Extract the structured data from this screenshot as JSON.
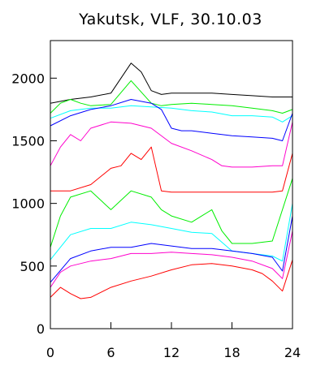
{
  "chart_data": {
    "type": "line",
    "title": "Yakutsk, VLF, 30.10.03",
    "xlabel": "",
    "ylabel": "",
    "xlim": [
      0,
      24
    ],
    "ylim": [
      0,
      2300
    ],
    "x_ticks": [
      0,
      6,
      12,
      18,
      24
    ],
    "y_ticks": [
      0,
      500,
      1000,
      1500,
      2000
    ],
    "grid": false,
    "series": [
      {
        "color": "#000000",
        "x": [
          0,
          2,
          4,
          6,
          7,
          8,
          9,
          10,
          11,
          12,
          14,
          16,
          18,
          20,
          22,
          24
        ],
        "y": [
          1800,
          1830,
          1850,
          1880,
          2000,
          2120,
          2050,
          1900,
          1870,
          1880,
          1880,
          1880,
          1870,
          1860,
          1850,
          1850
        ]
      },
      {
        "color": "#00ee00",
        "x": [
          0,
          1,
          2,
          3,
          4,
          6,
          8,
          10,
          11,
          12,
          14,
          16,
          18,
          20,
          22,
          23,
          24
        ],
        "y": [
          1720,
          1800,
          1830,
          1800,
          1780,
          1790,
          1980,
          1800,
          1780,
          1790,
          1800,
          1790,
          1780,
          1760,
          1740,
          1720,
          1750
        ]
      },
      {
        "color": "#00ffff",
        "x": [
          0,
          2,
          4,
          6,
          8,
          10,
          12,
          14,
          16,
          18,
          20,
          22,
          23,
          24
        ],
        "y": [
          1680,
          1740,
          1760,
          1760,
          1780,
          1770,
          1760,
          1740,
          1730,
          1700,
          1700,
          1690,
          1650,
          1700
        ]
      },
      {
        "color": "#0000ff",
        "x": [
          0,
          2,
          4,
          6,
          8,
          10,
          11,
          12,
          13,
          14,
          16,
          18,
          20,
          22,
          23,
          24
        ],
        "y": [
          1620,
          1700,
          1750,
          1780,
          1830,
          1800,
          1750,
          1600,
          1580,
          1580,
          1560,
          1540,
          1530,
          1520,
          1500,
          1720
        ]
      },
      {
        "color": "#ff00cc",
        "x": [
          0,
          1,
          2,
          3,
          4,
          6,
          8,
          10,
          12,
          14,
          16,
          17,
          18,
          20,
          22,
          23,
          24
        ],
        "y": [
          1300,
          1450,
          1550,
          1500,
          1600,
          1650,
          1640,
          1600,
          1480,
          1420,
          1350,
          1300,
          1290,
          1290,
          1300,
          1300,
          1650
        ]
      },
      {
        "color": "#ff0000",
        "x": [
          0,
          2,
          4,
          6,
          7,
          8,
          9,
          10,
          11,
          12,
          14,
          16,
          18,
          20,
          22,
          23,
          24
        ],
        "y": [
          1100,
          1100,
          1150,
          1280,
          1300,
          1400,
          1350,
          1450,
          1100,
          1090,
          1090,
          1090,
          1090,
          1090,
          1090,
          1100,
          1400
        ]
      },
      {
        "color": "#00ee00",
        "x": [
          0,
          1,
          2,
          4,
          6,
          8,
          10,
          11,
          12,
          14,
          15,
          16,
          17,
          18,
          20,
          22,
          24
        ],
        "y": [
          650,
          900,
          1050,
          1100,
          950,
          1100,
          1050,
          950,
          900,
          850,
          900,
          950,
          780,
          680,
          680,
          700,
          1200
        ]
      },
      {
        "color": "#00ffff",
        "x": [
          0,
          2,
          4,
          6,
          8,
          10,
          12,
          14,
          16,
          18,
          20,
          22,
          23,
          24
        ],
        "y": [
          550,
          750,
          800,
          800,
          850,
          830,
          800,
          770,
          760,
          620,
          600,
          580,
          540,
          1000
        ]
      },
      {
        "color": "#0000ff",
        "x": [
          0,
          2,
          4,
          6,
          8,
          10,
          12,
          14,
          16,
          18,
          20,
          22,
          23,
          24
        ],
        "y": [
          370,
          560,
          620,
          650,
          650,
          680,
          660,
          640,
          640,
          620,
          600,
          570,
          460,
          900
        ]
      },
      {
        "color": "#ff00cc",
        "x": [
          0,
          1,
          2,
          4,
          6,
          8,
          10,
          12,
          14,
          16,
          18,
          20,
          22,
          23,
          24
        ],
        "y": [
          330,
          450,
          500,
          540,
          560,
          600,
          600,
          610,
          600,
          590,
          570,
          540,
          480,
          400,
          780
        ]
      },
      {
        "color": "#ff0000",
        "x": [
          0,
          1,
          2,
          3,
          4,
          6,
          8,
          10,
          12,
          14,
          16,
          18,
          20,
          21,
          22,
          23,
          24
        ],
        "y": [
          250,
          330,
          280,
          240,
          250,
          330,
          380,
          420,
          470,
          510,
          520,
          500,
          470,
          440,
          380,
          300,
          550
        ]
      }
    ]
  }
}
